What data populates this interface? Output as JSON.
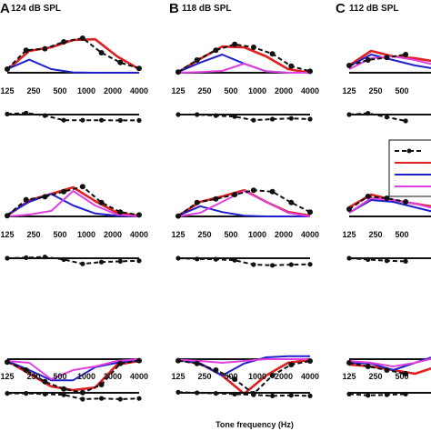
{
  "figure": {
    "xlabel": "Tone frequency (Hz)"
  },
  "chart_data": {
    "type": "line",
    "x": [
      125,
      250,
      500,
      1000,
      2000,
      4000
    ],
    "x_tick_labels": [
      "125",
      "250",
      "500",
      "1000",
      "2000",
      "4000"
    ],
    "x_scale": "log",
    "grid": false,
    "legend": "right, partially cropped; series names not visible",
    "colors": {
      "data": "#111111",
      "red": "#e02020",
      "blue": "#2020cc",
      "magenta": "#e040e0"
    },
    "panels": [
      {
        "letter": "A",
        "level": "124 dB SPL",
        "full": true,
        "rows": [
          {
            "dashed": [
              0.1,
              0.62,
              0.66,
              0.85,
              0.95,
              0.55,
              0.28,
              0.12
            ],
            "red": [
              0.08,
              0.6,
              0.7,
              0.9,
              0.92,
              0.45,
              0.1
            ],
            "blue": [
              0.1,
              0.36,
              0.1,
              0.01,
              0.0,
              0.0,
              0.0
            ],
            "magenta": null,
            "diff": [
              0.02,
              0.06,
              -0.04,
              -0.22,
              -0.22,
              -0.22,
              -0.23,
              -0.23
            ]
          },
          {
            "dashed": [
              0.02,
              0.46,
              0.54,
              0.68,
              0.82,
              0.38,
              0.12,
              0.04
            ],
            "red": [
              0.02,
              0.44,
              0.62,
              0.8,
              0.42,
              0.1,
              0.02
            ],
            "blue": [
              0.05,
              0.4,
              0.62,
              0.3,
              0.08,
              0.02,
              0.0
            ],
            "magenta": [
              0.0,
              0.05,
              0.15,
              0.7,
              0.3,
              0.05,
              0.0
            ],
            "diff": [
              0.0,
              0.02,
              0.05,
              -0.05,
              -0.22,
              -0.15,
              -0.12,
              -0.1
            ]
          },
          {
            "dashed": [
              -0.08,
              -0.3,
              -0.62,
              -0.82,
              -0.92,
              -0.7,
              -0.12,
              -0.04
            ],
            "red": [
              -0.05,
              -0.4,
              -0.75,
              -0.85,
              -0.78,
              -0.15,
              -0.05
            ],
            "blue": [
              -0.05,
              -0.3,
              -0.58,
              -0.58,
              -0.22,
              -0.1,
              -0.02
            ],
            "magenta": [
              -0.05,
              -0.1,
              -0.55,
              -0.3,
              -0.2,
              -0.05,
              0.0
            ],
            "diff": [
              -0.02,
              -0.02,
              -0.05,
              -0.08,
              -0.25,
              -0.22,
              -0.25,
              -0.22
            ]
          }
        ]
      },
      {
        "letter": "B",
        "level": "118 dB SPL",
        "full": true,
        "rows": [
          {
            "dashed": [
              0.02,
              0.35,
              0.62,
              0.78,
              0.7,
              0.52,
              0.18,
              0.04
            ],
            "red": [
              0.02,
              0.38,
              0.72,
              0.7,
              0.45,
              0.1,
              0.0
            ],
            "blue": [
              0.02,
              0.28,
              0.5,
              0.25,
              0.04,
              0.0,
              0.0
            ],
            "magenta": [
              0.0,
              0.02,
              0.05,
              0.25,
              0.04,
              0.0,
              0.0
            ],
            "diff": [
              0.0,
              0.0,
              -0.04,
              -0.08,
              -0.22,
              -0.18,
              -0.15,
              -0.18
            ]
          },
          {
            "dashed": [
              0.01,
              0.38,
              0.48,
              0.6,
              0.72,
              0.68,
              0.38,
              0.12
            ],
            "red": [
              0.02,
              0.4,
              0.55,
              0.72,
              0.4,
              0.12,
              0.02
            ],
            "blue": [
              0.02,
              0.28,
              0.12,
              0.02,
              0.0,
              0.0,
              0.0
            ],
            "magenta": [
              0.0,
              0.1,
              0.4,
              0.7,
              0.4,
              0.1,
              0.0
            ],
            "diff": [
              0.0,
              -0.03,
              -0.04,
              -0.08,
              -0.25,
              -0.28,
              -0.25,
              -0.24
            ]
          },
          {
            "dashed": [
              -0.04,
              -0.12,
              -0.3,
              -0.55,
              -0.95,
              -0.45,
              -0.15,
              -0.05
            ],
            "red": [
              -0.02,
              -0.12,
              -0.45,
              -0.95,
              -0.45,
              -0.1,
              -0.02
            ],
            "blue": [
              -0.02,
              -0.12,
              -0.45,
              -0.12,
              0.05,
              0.08,
              0.08
            ],
            "magenta": [
              -0.02,
              -0.05,
              -0.1,
              -0.05,
              0.0,
              0.0,
              0.0
            ],
            "diff": [
              0.02,
              0.0,
              -0.02,
              -0.05,
              -0.08,
              -0.12,
              -0.1,
              -0.12
            ]
          }
        ]
      },
      {
        "letter": "C",
        "level": "112 dB SPL",
        "full": false,
        "rows": [
          {
            "dashed": [
              0.2,
              0.35,
              0.42,
              0.5
            ],
            "red": [
              0.2,
              0.6,
              0.45,
              0.4,
              0.3
            ],
            "blue": [
              0.18,
              0.5,
              0.35,
              0.2,
              0.1
            ],
            "magenta": [
              0.1,
              0.4,
              0.45,
              0.35,
              0.2
            ],
            "diff": [
              0.0,
              0.05,
              -0.1,
              -0.25
            ]
          },
          {
            "dashed": [
              0.2,
              0.55,
              0.5,
              0.4
            ],
            "red": [
              0.25,
              0.6,
              0.45,
              0.35,
              0.25
            ],
            "blue": [
              0.1,
              0.45,
              0.4,
              0.25,
              0.1
            ],
            "magenta": [
              0.1,
              0.5,
              0.45,
              0.35,
              0.2
            ],
            "diff": [
              0.0,
              -0.05,
              -0.1,
              -0.12
            ]
          },
          {
            "dashed": [
              -0.1,
              -0.2,
              -0.3,
              -0.4
            ],
            "red": [
              -0.15,
              -0.2,
              -0.3,
              -0.4,
              -0.2
            ],
            "blue": [
              -0.1,
              -0.12,
              -0.3,
              -0.1,
              0.1
            ],
            "magenta": [
              -0.05,
              -0.1,
              -0.2,
              -0.1,
              0.05
            ],
            "diff": [
              -0.05,
              -0.1,
              -0.08,
              -0.05
            ]
          }
        ]
      }
    ]
  }
}
